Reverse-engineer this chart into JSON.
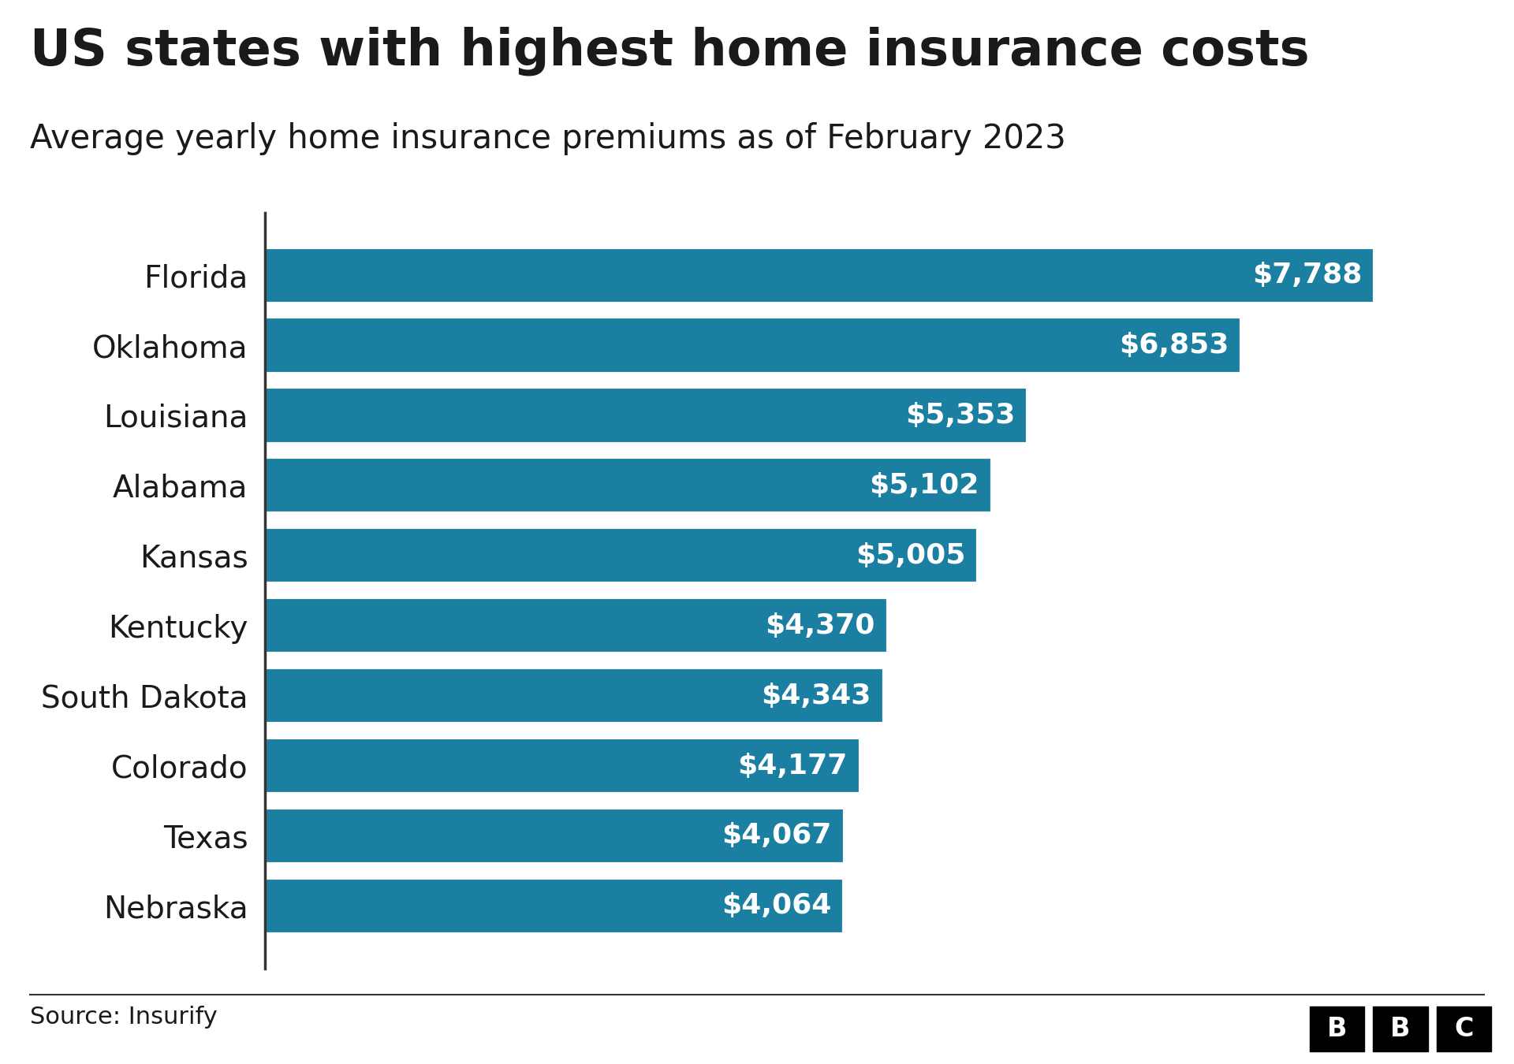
{
  "title": "US states with highest home insurance costs",
  "subtitle": "Average yearly home insurance premiums as of February 2023",
  "states": [
    "Florida",
    "Oklahoma",
    "Louisiana",
    "Alabama",
    "Kansas",
    "Kentucky",
    "South Dakota",
    "Colorado",
    "Texas",
    "Nebraska"
  ],
  "values": [
    7788,
    6853,
    5353,
    5102,
    5005,
    4370,
    4343,
    4177,
    4067,
    4064
  ],
  "labels": [
    "$7,788",
    "$6,853",
    "$5,353",
    "$5,102",
    "$5,005",
    "$4,370",
    "$4,343",
    "$4,177",
    "$4,067",
    "$4,064"
  ],
  "bar_color": "#1a7fa0",
  "background_color": "#ffffff",
  "text_color": "#1a1a1a",
  "label_color": "#ffffff",
  "source_text": "Source: Insurify",
  "title_fontsize": 46,
  "subtitle_fontsize": 30,
  "label_fontsize": 26,
  "state_fontsize": 28,
  "source_fontsize": 22,
  "xlim": [
    0,
    8500
  ]
}
